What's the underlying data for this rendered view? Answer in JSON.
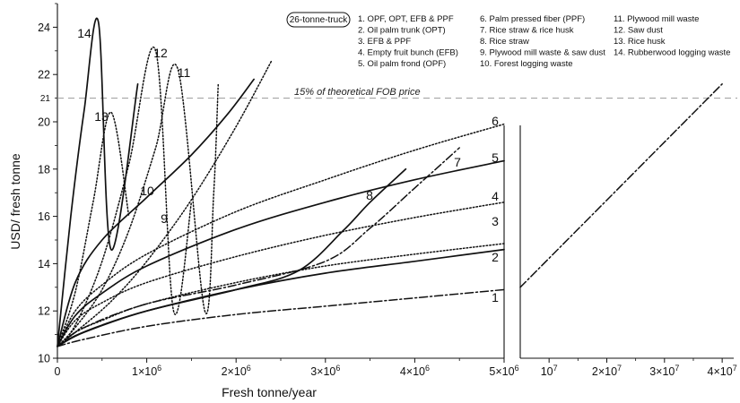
{
  "chart_data": {
    "type": "line",
    "title": "",
    "xlabel": "Fresh tonne/year",
    "ylabel": "USD/ fresh tonne",
    "ylim": [
      10,
      25
    ],
    "yticks": [
      10,
      12,
      14,
      16,
      18,
      20,
      22,
      24
    ],
    "reference_line": {
      "y": 21,
      "tick_label": "21",
      "label": "15% of theoretical FOB price"
    },
    "legend_title": "26-tonne-truck",
    "legend_placement": "top-right",
    "grid": false,
    "panels": [
      {
        "name": "left",
        "x_range": [
          0,
          5000000
        ],
        "x_ticks": [
          0,
          1000000,
          2000000,
          3000000,
          4000000,
          5000000
        ],
        "x_tick_labels": [
          "0",
          "1×10⁶",
          "2×10⁶",
          "3×10⁶",
          "4×10⁶",
          "5×10⁶"
        ]
      },
      {
        "name": "right",
        "x_range": [
          5000000,
          42000000
        ],
        "x_ticks": [
          10000000,
          20000000,
          30000000,
          40000000
        ],
        "x_tick_labels": [
          "10⁷",
          "2×10⁷",
          "3×10⁷",
          "4×10⁷"
        ]
      }
    ],
    "series": [
      {
        "id": "1",
        "name": "OPF, OPT, EFB & PPF",
        "legend": "1. OPF, OPT, EFB & PPF",
        "style": "dashdot",
        "x": [
          0,
          300000,
          1000000,
          2000000,
          3000000,
          4000000,
          5000000,
          5000000,
          40000000
        ],
        "y": [
          10.5,
          10.8,
          11.35,
          11.85,
          12.2,
          12.55,
          12.9,
          13.0,
          21.6
        ]
      },
      {
        "id": "2",
        "name": "Oil palm trunk (OPT)",
        "legend": "2. Oil palm trunk (OPT)",
        "style": "solid",
        "x": [
          0,
          200000,
          500000,
          1000000,
          2000000,
          3000000,
          4000000,
          5000000
        ],
        "y": [
          10.5,
          10.95,
          11.4,
          12.0,
          12.9,
          13.6,
          14.1,
          14.6
        ]
      },
      {
        "id": "3",
        "name": "EFB & PPF",
        "legend": "3. EFB & PPF",
        "style": "dotted",
        "x": [
          0,
          200000,
          500000,
          1000000,
          2000000,
          3000000,
          4000000,
          5000000
        ],
        "y": [
          10.5,
          11.1,
          11.6,
          12.3,
          13.2,
          13.9,
          14.4,
          14.85
        ]
      },
      {
        "id": "4",
        "name": "Empty fruit bunch (EFB)",
        "legend": "4. Empty fruit bunch (EFB)",
        "style": "dotted",
        "x": [
          0,
          200000,
          500000,
          1000000,
          2000000,
          3000000,
          4000000,
          5000000
        ],
        "y": [
          10.5,
          11.6,
          12.35,
          13.2,
          14.3,
          15.2,
          15.95,
          16.6
        ]
      },
      {
        "id": "5",
        "name": "Oil palm frond (OPF)",
        "legend": "5. Oil palm frond (OPF)",
        "style": "solid",
        "x": [
          0,
          200000,
          500000,
          1000000,
          2000000,
          3000000,
          4000000,
          5000000
        ],
        "y": [
          10.5,
          11.8,
          12.75,
          13.9,
          15.45,
          16.6,
          17.55,
          18.35
        ]
      },
      {
        "id": "6",
        "name": "Palm pressed fiber (PPF)",
        "legend": "6. Palm pressed fiber (PPF)",
        "style": "dotted",
        "x": [
          0,
          200000,
          500000,
          1000000,
          2000000,
          3000000,
          4000000,
          5000000
        ],
        "y": [
          10.5,
          12.0,
          13.1,
          14.4,
          16.2,
          17.55,
          18.8,
          19.9
        ]
      },
      {
        "id": "7",
        "name": "Rice straw & rice husk",
        "legend": "7. Rice straw & rice husk",
        "style": "dashdot",
        "x": [
          0,
          300000,
          1000000,
          2000000,
          3000000,
          3500000,
          4000000,
          4500000
        ],
        "y": [
          10.5,
          11.3,
          12.3,
          13.1,
          14.1,
          15.5,
          17.2,
          18.9
        ]
      },
      {
        "id": "8",
        "name": "Rice straw",
        "legend": "8. Rice straw",
        "style": "solid",
        "x": [
          0,
          300000,
          1000000,
          2000000,
          2700000,
          3200000,
          3500000,
          3900000
        ],
        "y": [
          10.5,
          11.1,
          12.0,
          12.9,
          13.7,
          15.4,
          16.6,
          18.0
        ]
      },
      {
        "id": "9",
        "name": "Plywood mill waste & saw dust",
        "legend": "9. Plywood mill waste & saw dust",
        "style": "dotted",
        "x": [
          0,
          200000,
          600000,
          1000000,
          1500000,
          2000000,
          2400000
        ],
        "y": [
          10.5,
          11.1,
          12.4,
          14.1,
          16.7,
          19.8,
          22.6
        ]
      },
      {
        "id": "10",
        "name": "Forest logging waste",
        "legend": "10. Forest logging waste",
        "style": "solid",
        "x": [
          0,
          200000,
          500000,
          1000000,
          1500000,
          1900000,
          2200000
        ],
        "y": [
          10.5,
          13.2,
          15.0,
          16.8,
          18.6,
          20.3,
          21.8
        ]
      },
      {
        "id": "11",
        "name": "Plywood mill waste",
        "legend": "11. Plywood mill waste",
        "style": "dotted",
        "x": [
          0,
          200000,
          500000,
          800000,
          1100000,
          1350000,
          1650000,
          1750000,
          1800000
        ],
        "y": [
          10.5,
          11.3,
          12.9,
          15.4,
          18.9,
          22.2,
          12.0,
          17.0,
          21.6
        ]
      },
      {
        "id": "12",
        "name": "Saw dust",
        "legend": "12. Saw dust",
        "style": "dotted",
        "x": [
          0,
          200000,
          500000,
          800000,
          1100000,
          1300000,
          1500000
        ],
        "y": [
          10.5,
          11.4,
          14.1,
          18.2,
          23.0,
          12.0,
          16.6
        ]
      },
      {
        "id": "13",
        "name": "Rice husk",
        "legend": "13. Rice husk",
        "style": "dotted",
        "x": [
          0,
          200000,
          400000,
          600000,
          800000
        ],
        "y": [
          10.5,
          12.8,
          16.6,
          20.4,
          16.0
        ]
      },
      {
        "id": "14",
        "name": "Rubberwood logging waste",
        "legend": "14. Rubberwood logging waste",
        "style": "solid",
        "x": [
          0,
          150000,
          300000,
          460000,
          600000,
          900000
        ],
        "y": [
          10.5,
          16.0,
          20.5,
          24.2,
          14.6,
          21.6
        ]
      }
    ],
    "series_labels": [
      "1",
      "2",
      "3",
      "4",
      "5",
      "6",
      "7",
      "8",
      "9",
      "10",
      "11",
      "12",
      "13",
      "14"
    ]
  }
}
